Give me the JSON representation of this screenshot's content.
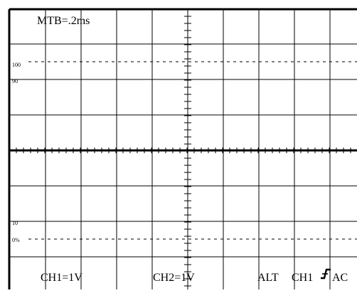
{
  "readouts": {
    "timebase": "MTB=.2ms",
    "ch1_volts_div": "CH1=1V",
    "ch2_volts_div": "CH2=1V",
    "mode": "ALT",
    "trigger_source": "CH1",
    "trigger_slope_icon": "rising-edge-trigger-icon",
    "coupling": "AC"
  },
  "graticule_marks": {
    "top_100": "100",
    "top_90": "90",
    "bottom_10": "10",
    "bottom_0": "0%"
  },
  "colors": {
    "background": "#ffffff",
    "grid": "#000000"
  }
}
